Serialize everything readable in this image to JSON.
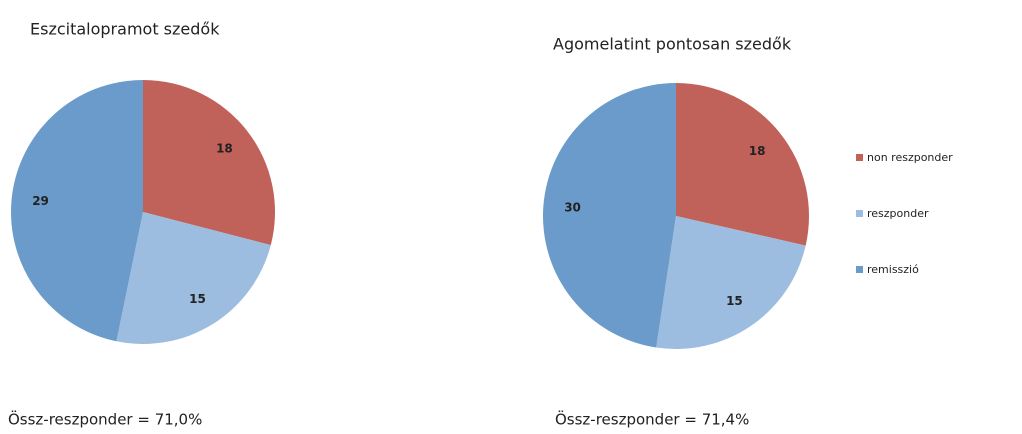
{
  "chart_data": [
    {
      "type": "pie",
      "title": "Eszcitalopramot szedők",
      "values": [
        18,
        15,
        29
      ],
      "annotation": "Össz-reszponder = 71,0%"
    },
    {
      "type": "pie",
      "title": "Agomelatint pontosan szedők",
      "values": [
        18,
        15,
        30
      ],
      "annotation": "Össz-reszponder = 71,4%"
    }
  ],
  "legend": {
    "labels": [
      "non reszponder",
      "reszponder",
      "remisszió"
    ],
    "colors": [
      "#c0625a",
      "#9dbde0",
      "#6a9bcb"
    ]
  }
}
